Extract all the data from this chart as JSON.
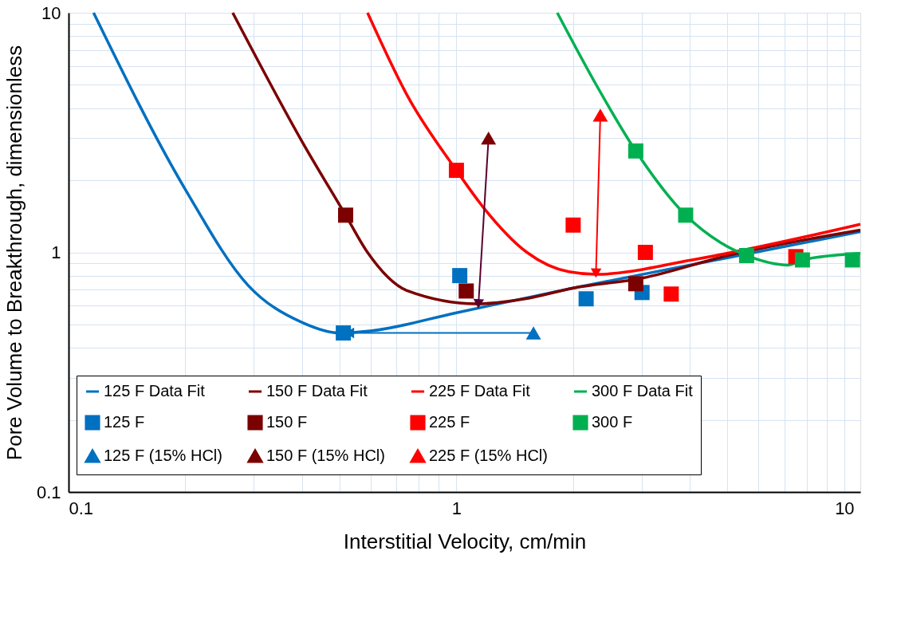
{
  "chart_data": {
    "type": "line",
    "xlabel": "Interstitial Velocity, cm/min",
    "ylabel": "Pore Volume to Breakthrough, dimensionless",
    "log": "xy",
    "xlim": [
      0.1,
      11
    ],
    "ylim": [
      0.1,
      10
    ],
    "xticks": [
      0.1,
      {
        "value": 0.2,
        "label": null
      },
      {
        "value": 0.3,
        "label": null
      },
      {
        "value": 0.4,
        "label": null
      },
      {
        "value": 0.5,
        "label": null
      },
      {
        "value": 0.6,
        "label": null
      },
      {
        "value": 0.7,
        "label": null
      },
      {
        "value": 0.8,
        "label": null
      },
      {
        "value": 0.9,
        "label": null
      },
      1,
      {
        "value": 2,
        "label": null
      },
      {
        "value": 3,
        "label": null
      },
      {
        "value": 4,
        "label": null
      },
      {
        "value": 5,
        "label": null
      },
      {
        "value": 6,
        "label": null
      },
      {
        "value": 7,
        "label": null
      },
      {
        "value": 8,
        "label": null
      },
      {
        "value": 9,
        "label": null
      },
      10
    ],
    "yticks": [
      0.1,
      {
        "value": 0.2,
        "label": null
      },
      {
        "value": 0.3,
        "label": null
      },
      {
        "value": 0.4,
        "label": null
      },
      {
        "value": 0.5,
        "label": null
      },
      {
        "value": 0.6,
        "label": null
      },
      {
        "value": 0.7,
        "label": null
      },
      {
        "value": 0.8,
        "label": null
      },
      {
        "value": 0.9,
        "label": null
      },
      1,
      {
        "value": 2,
        "label": null
      },
      {
        "value": 3,
        "label": null
      },
      {
        "value": 4,
        "label": null
      },
      {
        "value": 5,
        "label": null
      },
      {
        "value": 6,
        "label": null
      },
      {
        "value": 7,
        "label": null
      },
      {
        "value": 8,
        "label": null
      },
      {
        "value": 9,
        "label": null
      },
      10
    ],
    "grid": true,
    "legend": "bottom",
    "series": [
      {
        "name": "125 F Data Fit",
        "marker": "none",
        "color": "#0070c0",
        "x": [
          0.116,
          0.2,
          0.29,
          0.4,
          0.5,
          0.6,
          1,
          2,
          5,
          11
        ],
        "values": [
          10,
          1.83,
          0.73,
          0.51,
          0.461,
          0.47,
          0.56,
          0.71,
          0.95,
          1.22
        ]
      },
      {
        "name": "150 F Data Fit",
        "marker": "none",
        "color": "#7b0000",
        "x": [
          0.265,
          0.4,
          0.518,
          0.59,
          0.75,
          1.13,
          1.5,
          2,
          3,
          5,
          11
        ],
        "values": [
          10,
          2.9,
          1.43,
          1.0,
          0.69,
          0.61,
          0.64,
          0.71,
          0.78,
          0.97,
          1.24
        ]
      },
      {
        "name": "225 F Data Fit",
        "marker": "none",
        "color": "#ff0000",
        "x": [
          0.59,
          0.75,
          1.0,
          1.17,
          1.52,
          1.95,
          2.29,
          4.05,
          11
        ],
        "values": [
          10,
          4.46,
          2.2,
          1.55,
          1.0,
          0.83,
          0.81,
          0.93,
          1.31
        ]
      },
      {
        "name": "300 F Data Fit",
        "marker": "none",
        "color": "#00b050",
        "x": [
          1.82,
          2.3,
          2.9,
          3.9,
          4.79,
          5.6,
          7.18,
          7.8,
          11
        ],
        "values": [
          10,
          4.96,
          2.65,
          1.43,
          1.1,
          0.97,
          0.885,
          0.93,
          0.99
        ]
      },
      {
        "name": "125 F",
        "type": "scatter",
        "marker": "square",
        "color": "#0070c0",
        "x": [
          0.511,
          1.02,
          2.16,
          3.01
        ],
        "values": [
          0.461,
          0.8,
          0.64,
          0.68
        ]
      },
      {
        "name": "150 F",
        "type": "scatter",
        "marker": "square",
        "color": "#7b0000",
        "x": [
          0.518,
          1.06,
          2.9
        ],
        "values": [
          1.43,
          0.69,
          0.74
        ]
      },
      {
        "name": "225 F",
        "type": "scatter",
        "marker": "square",
        "color": "#ff0000",
        "x": [
          1.0,
          2.0,
          3.07,
          3.58,
          7.5
        ],
        "values": [
          2.2,
          1.3,
          1.0,
          0.67,
          0.96
        ]
      },
      {
        "name": "300 F",
        "type": "scatter",
        "marker": "square",
        "color": "#00b050",
        "x": [
          2.9,
          3.9,
          5.6,
          7.8,
          10.5
        ],
        "values": [
          2.65,
          1.43,
          0.97,
          0.93,
          0.93
        ]
      },
      {
        "name": "125 F (15% HCl)",
        "type": "scatter",
        "marker": "triangle",
        "color": "#0070c0",
        "x": [
          1.58
        ],
        "values": [
          0.461
        ]
      },
      {
        "name": "150 F (15% HCl)",
        "type": "scatter",
        "marker": "triangle",
        "color": "#7b0000",
        "x": [
          1.21
        ],
        "values": [
          3.0
        ]
      },
      {
        "name": "225 F (15% HCl)",
        "type": "scatter",
        "marker": "triangle",
        "color": "#ff0000",
        "x": [
          2.35
        ],
        "values": [
          3.74
        ]
      },
      {
        "type": "line",
        "marker": "triangle",
        "color": "#0070c0",
        "x": [
          1.58,
          0.53
        ],
        "values": [
          0.461,
          0.461
        ]
      },
      {
        "type": "line",
        "marker": "triangle",
        "color": "#5a0030",
        "x": [
          1.21,
          1.14
        ],
        "values": [
          3.0,
          0.61
        ]
      },
      {
        "type": "line",
        "marker": "triangle",
        "color": "#ff0000",
        "x": [
          2.35,
          2.29
        ],
        "values": [
          3.74,
          0.82
        ]
      }
    ]
  }
}
